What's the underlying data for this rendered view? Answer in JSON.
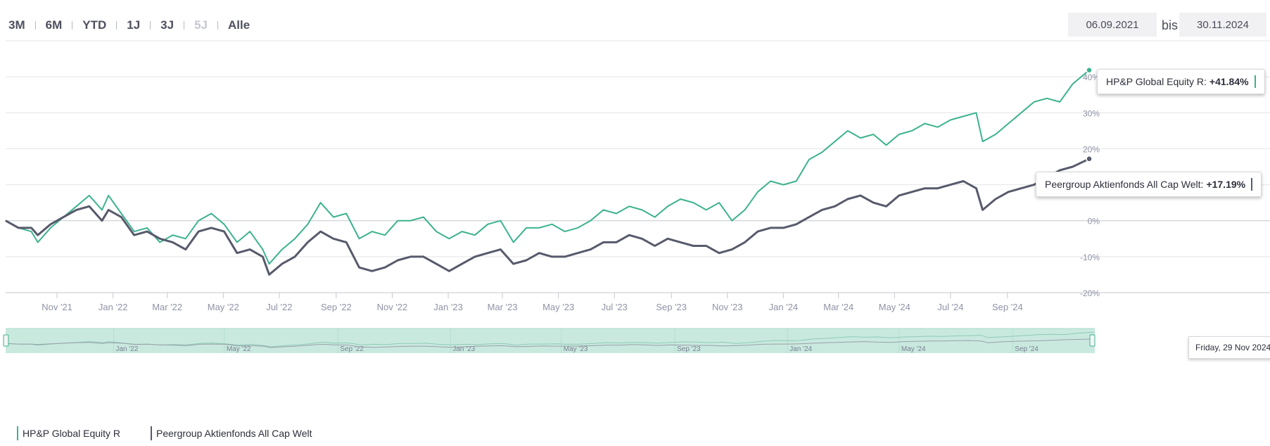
{
  "range_selector": {
    "buttons": [
      {
        "label": "3M",
        "enabled": true
      },
      {
        "label": "6M",
        "enabled": true
      },
      {
        "label": "YTD",
        "enabled": true
      },
      {
        "label": "1J",
        "enabled": true
      },
      {
        "label": "3J",
        "enabled": true
      },
      {
        "label": "5J",
        "enabled": false
      },
      {
        "label": "Alle",
        "enabled": true
      }
    ]
  },
  "date_range": {
    "from": "06.09.2021",
    "separator": "bis",
    "to": "30.11.2024"
  },
  "colors": {
    "fund": "#3db28f",
    "peer": "#575a6b",
    "navigator_bg": "#c9e9df",
    "grid": "#e3e4e8",
    "axis_label": "#8f93a6"
  },
  "tooltips": {
    "fund": {
      "label": "HP&P Global Equity R:",
      "value": "+41.84%"
    },
    "peer": {
      "label": "Peergroup Aktienfonds All Cap Welt:",
      "value": "+17.19%"
    },
    "date": "Friday, 29 Nov 2024"
  },
  "chart_data": {
    "type": "line",
    "x_axis": {
      "tick_labels": [
        "Nov '21",
        "Jan '22",
        "Mar '22",
        "May '22",
        "Jul '22",
        "Sep '22",
        "Nov '22",
        "Jan '23",
        "Mar '23",
        "May '23",
        "Jul '23",
        "Sep '23",
        "Nov '23",
        "Jan '24",
        "Mar '24",
        "May '24",
        "Jul '24",
        "Sep '24"
      ],
      "tick_dates": [
        "2021-11-01",
        "2022-01-01",
        "2022-03-01",
        "2022-05-01",
        "2022-07-01",
        "2022-09-01",
        "2022-11-01",
        "2023-01-01",
        "2023-03-01",
        "2023-05-01",
        "2023-07-01",
        "2023-09-01",
        "2023-11-01",
        "2024-01-01",
        "2024-03-01",
        "2024-05-01",
        "2024-07-01",
        "2024-09-01"
      ],
      "range": [
        "2021-09-06",
        "2024-11-29"
      ]
    },
    "y_axis": {
      "tick_labels": [
        "-20%",
        "-10%",
        "0%",
        "10%",
        "20%",
        "30%",
        "40%"
      ],
      "tick_values": [
        -20,
        -10,
        0,
        10,
        20,
        30,
        40
      ],
      "range": [
        -20,
        50
      ],
      "unit": "%"
    },
    "grid": true,
    "legend_position": "bottom-left",
    "navigator": {
      "tick_labels": [
        "Jan '22",
        "May '22",
        "Sep '22",
        "Jan '23",
        "May '23",
        "Sep '23",
        "Jan '24",
        "May '24",
        "Sep '24"
      ],
      "tick_dates": [
        "2022-01-01",
        "2022-05-01",
        "2022-09-01",
        "2023-01-01",
        "2023-05-01",
        "2023-09-01",
        "2024-01-01",
        "2024-05-01",
        "2024-09-01"
      ]
    },
    "series": [
      {
        "name": "HP&P Global Equity R",
        "color": "#3db28f",
        "points": [
          [
            "2021-09-06",
            0
          ],
          [
            "2021-09-20",
            -2
          ],
          [
            "2021-10-04",
            -3
          ],
          [
            "2021-10-11",
            -6
          ],
          [
            "2021-10-25",
            -2
          ],
          [
            "2021-11-08",
            1
          ],
          [
            "2021-11-22",
            4
          ],
          [
            "2021-12-06",
            7
          ],
          [
            "2021-12-20",
            3
          ],
          [
            "2021-12-27",
            7
          ],
          [
            "2022-01-10",
            2
          ],
          [
            "2022-01-24",
            -3
          ],
          [
            "2022-02-07",
            -2
          ],
          [
            "2022-02-21",
            -6
          ],
          [
            "2022-03-07",
            -4
          ],
          [
            "2022-03-21",
            -5
          ],
          [
            "2022-04-04",
            0
          ],
          [
            "2022-04-18",
            2
          ],
          [
            "2022-05-02",
            -1
          ],
          [
            "2022-05-16",
            -6
          ],
          [
            "2022-05-30",
            -3
          ],
          [
            "2022-06-13",
            -8
          ],
          [
            "2022-06-20",
            -12
          ],
          [
            "2022-07-04",
            -8
          ],
          [
            "2022-07-18",
            -5
          ],
          [
            "2022-08-01",
            -1
          ],
          [
            "2022-08-15",
            5
          ],
          [
            "2022-08-29",
            1
          ],
          [
            "2022-09-12",
            2
          ],
          [
            "2022-09-26",
            -5
          ],
          [
            "2022-10-10",
            -3
          ],
          [
            "2022-10-24",
            -4
          ],
          [
            "2022-11-07",
            0
          ],
          [
            "2022-11-21",
            0
          ],
          [
            "2022-12-05",
            1
          ],
          [
            "2022-12-19",
            -3
          ],
          [
            "2023-01-02",
            -5
          ],
          [
            "2023-01-16",
            -3
          ],
          [
            "2023-01-30",
            -4
          ],
          [
            "2023-02-13",
            -1
          ],
          [
            "2023-02-27",
            0
          ],
          [
            "2023-03-13",
            -6
          ],
          [
            "2023-03-27",
            -2
          ],
          [
            "2023-04-10",
            -2
          ],
          [
            "2023-04-24",
            -1
          ],
          [
            "2023-05-08",
            -3
          ],
          [
            "2023-05-22",
            -2
          ],
          [
            "2023-06-05",
            0
          ],
          [
            "2023-06-19",
            3
          ],
          [
            "2023-07-03",
            2
          ],
          [
            "2023-07-17",
            4
          ],
          [
            "2023-07-31",
            3
          ],
          [
            "2023-08-14",
            1
          ],
          [
            "2023-08-28",
            4
          ],
          [
            "2023-09-11",
            6
          ],
          [
            "2023-09-25",
            5
          ],
          [
            "2023-10-09",
            3
          ],
          [
            "2023-10-23",
            5
          ],
          [
            "2023-11-06",
            0
          ],
          [
            "2023-11-20",
            3
          ],
          [
            "2023-12-04",
            8
          ],
          [
            "2023-12-18",
            11
          ],
          [
            "2024-01-01",
            10
          ],
          [
            "2024-01-15",
            11
          ],
          [
            "2024-01-29",
            17
          ],
          [
            "2024-02-12",
            19
          ],
          [
            "2024-02-26",
            22
          ],
          [
            "2024-03-11",
            25
          ],
          [
            "2024-03-25",
            23
          ],
          [
            "2024-04-08",
            24
          ],
          [
            "2024-04-22",
            21
          ],
          [
            "2024-05-06",
            24
          ],
          [
            "2024-05-20",
            25
          ],
          [
            "2024-06-03",
            27
          ],
          [
            "2024-06-17",
            26
          ],
          [
            "2024-07-01",
            28
          ],
          [
            "2024-07-15",
            29
          ],
          [
            "2024-07-29",
            30
          ],
          [
            "2024-08-05",
            22
          ],
          [
            "2024-08-19",
            24
          ],
          [
            "2024-09-02",
            27
          ],
          [
            "2024-09-16",
            30
          ],
          [
            "2024-09-30",
            33
          ],
          [
            "2024-10-14",
            34
          ],
          [
            "2024-10-28",
            33
          ],
          [
            "2024-11-11",
            38
          ],
          [
            "2024-11-29",
            41.84
          ]
        ]
      },
      {
        "name": "Peergroup Aktienfonds All Cap Welt",
        "color": "#575a6b",
        "points": [
          [
            "2021-09-06",
            0
          ],
          [
            "2021-09-20",
            -2
          ],
          [
            "2021-10-04",
            -2
          ],
          [
            "2021-10-11",
            -4
          ],
          [
            "2021-10-25",
            -1
          ],
          [
            "2021-11-08",
            1
          ],
          [
            "2021-11-22",
            3
          ],
          [
            "2021-12-06",
            4
          ],
          [
            "2021-12-20",
            0
          ],
          [
            "2021-12-27",
            3
          ],
          [
            "2022-01-10",
            1
          ],
          [
            "2022-01-24",
            -4
          ],
          [
            "2022-02-07",
            -3
          ],
          [
            "2022-02-21",
            -5
          ],
          [
            "2022-03-07",
            -6
          ],
          [
            "2022-03-21",
            -8
          ],
          [
            "2022-04-04",
            -3
          ],
          [
            "2022-04-18",
            -2
          ],
          [
            "2022-05-02",
            -3
          ],
          [
            "2022-05-16",
            -9
          ],
          [
            "2022-05-30",
            -8
          ],
          [
            "2022-06-13",
            -10
          ],
          [
            "2022-06-20",
            -15
          ],
          [
            "2022-07-04",
            -12
          ],
          [
            "2022-07-18",
            -10
          ],
          [
            "2022-08-01",
            -6
          ],
          [
            "2022-08-15",
            -3
          ],
          [
            "2022-08-29",
            -5
          ],
          [
            "2022-09-12",
            -6
          ],
          [
            "2022-09-26",
            -13
          ],
          [
            "2022-10-10",
            -14
          ],
          [
            "2022-10-24",
            -13
          ],
          [
            "2022-11-07",
            -11
          ],
          [
            "2022-11-21",
            -10
          ],
          [
            "2022-12-05",
            -10
          ],
          [
            "2022-12-19",
            -12
          ],
          [
            "2023-01-02",
            -14
          ],
          [
            "2023-01-16",
            -12
          ],
          [
            "2023-01-30",
            -10
          ],
          [
            "2023-02-13",
            -9
          ],
          [
            "2023-02-27",
            -8
          ],
          [
            "2023-03-13",
            -12
          ],
          [
            "2023-03-27",
            -11
          ],
          [
            "2023-04-10",
            -9
          ],
          [
            "2023-04-24",
            -10
          ],
          [
            "2023-05-08",
            -10
          ],
          [
            "2023-05-22",
            -9
          ],
          [
            "2023-06-05",
            -8
          ],
          [
            "2023-06-19",
            -6
          ],
          [
            "2023-07-03",
            -6
          ],
          [
            "2023-07-17",
            -4
          ],
          [
            "2023-07-31",
            -5
          ],
          [
            "2023-08-14",
            -7
          ],
          [
            "2023-08-28",
            -5
          ],
          [
            "2023-09-11",
            -6
          ],
          [
            "2023-09-25",
            -7
          ],
          [
            "2023-10-09",
            -7
          ],
          [
            "2023-10-23",
            -9
          ],
          [
            "2023-11-06",
            -8
          ],
          [
            "2023-11-20",
            -6
          ],
          [
            "2023-12-04",
            -3
          ],
          [
            "2023-12-18",
            -2
          ],
          [
            "2024-01-01",
            -2
          ],
          [
            "2024-01-15",
            -1
          ],
          [
            "2024-01-29",
            1
          ],
          [
            "2024-02-12",
            3
          ],
          [
            "2024-02-26",
            4
          ],
          [
            "2024-03-11",
            6
          ],
          [
            "2024-03-25",
            7
          ],
          [
            "2024-04-08",
            5
          ],
          [
            "2024-04-22",
            4
          ],
          [
            "2024-05-06",
            7
          ],
          [
            "2024-05-20",
            8
          ],
          [
            "2024-06-03",
            9
          ],
          [
            "2024-06-17",
            9
          ],
          [
            "2024-07-01",
            10
          ],
          [
            "2024-07-15",
            11
          ],
          [
            "2024-07-29",
            9
          ],
          [
            "2024-08-05",
            3
          ],
          [
            "2024-08-19",
            6
          ],
          [
            "2024-09-02",
            8
          ],
          [
            "2024-09-16",
            9
          ],
          [
            "2024-09-30",
            10
          ],
          [
            "2024-10-14",
            12
          ],
          [
            "2024-10-28",
            14
          ],
          [
            "2024-11-11",
            15
          ],
          [
            "2024-11-29",
            17.19
          ]
        ]
      }
    ]
  }
}
